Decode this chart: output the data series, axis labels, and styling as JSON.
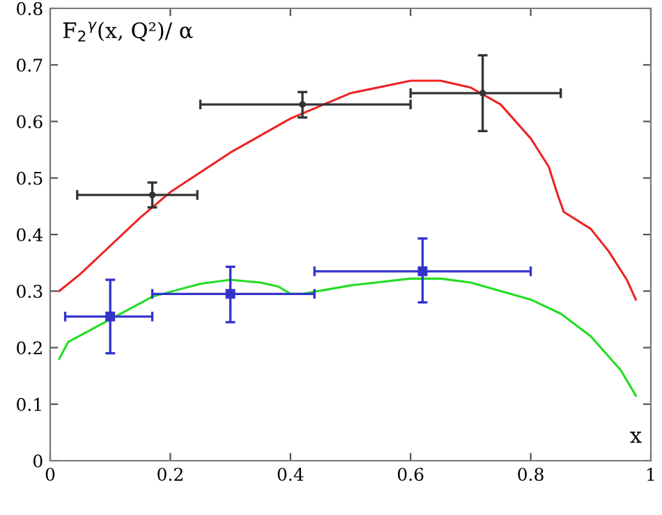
{
  "chart_data": {
    "type": "line",
    "ylabel": "F$_{2}$$^{γ}$(x, Q²)/ α",
    "xlabel": "x",
    "xlim": [
      0,
      1
    ],
    "ylim": [
      0,
      0.8
    ],
    "xticks": [
      0,
      0.2,
      0.4,
      0.6,
      0.8,
      1
    ],
    "yticks": [
      0,
      0.1,
      0.2,
      0.3,
      0.4,
      0.5,
      0.6,
      0.7,
      0.8
    ],
    "grid": false,
    "legend": false,
    "series": [
      {
        "color": "#ee2222",
        "x": [
          0.015,
          0.05,
          0.1,
          0.15,
          0.2,
          0.3,
          0.4,
          0.5,
          0.6,
          0.65,
          0.7,
          0.75,
          0.8,
          0.83,
          0.845,
          0.855,
          0.9,
          0.93,
          0.96,
          0.975
        ],
        "values": [
          0.3,
          0.33,
          0.38,
          0.43,
          0.475,
          0.545,
          0.605,
          0.65,
          0.672,
          0.672,
          0.66,
          0.63,
          0.57,
          0.52,
          0.47,
          0.44,
          0.41,
          0.37,
          0.32,
          0.285
        ]
      },
      {
        "color": "#22dd22",
        "x": [
          0.015,
          0.03,
          0.1,
          0.17,
          0.25,
          0.3,
          0.35,
          0.38,
          0.4,
          0.42,
          0.5,
          0.6,
          0.65,
          0.7,
          0.8,
          0.85,
          0.9,
          0.95,
          0.975
        ],
        "values": [
          0.18,
          0.21,
          0.25,
          0.29,
          0.313,
          0.32,
          0.315,
          0.308,
          0.295,
          0.295,
          0.31,
          0.322,
          0.322,
          0.315,
          0.285,
          0.26,
          0.22,
          0.16,
          0.115
        ]
      },
      {
        "type": "scatter",
        "marker": "circle",
        "color": "#333333",
        "x": [
          0.17,
          0.42,
          0.72
        ],
        "values": [
          0.47,
          0.63,
          0.65
        ],
        "errors": [
          [
            0.448,
            0.492
          ],
          [
            0.607,
            0.652
          ],
          [
            0.583,
            0.717
          ]
        ],
        "xerrors": [
          [
            0.045,
            0.245
          ],
          [
            0.25,
            0.6
          ],
          [
            0.6,
            0.85
          ]
        ]
      },
      {
        "type": "scatter",
        "marker": "square",
        "color": "#3333cc",
        "x": [
          0.1,
          0.3,
          0.62
        ],
        "values": [
          0.255,
          0.295,
          0.335
        ],
        "errors": [
          [
            0.19,
            0.32
          ],
          [
            0.245,
            0.343
          ],
          [
            0.28,
            0.393
          ]
        ],
        "xerrors": [
          [
            0.025,
            0.17
          ],
          [
            0.17,
            0.44
          ],
          [
            0.44,
            0.8
          ]
        ]
      }
    ]
  }
}
